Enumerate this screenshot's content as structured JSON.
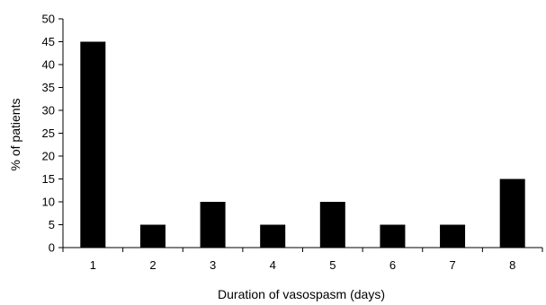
{
  "chart_data": {
    "type": "bar",
    "title": "",
    "xlabel": "Duration of vasospasm (days)",
    "ylabel": "% of patients",
    "categories": [
      "1",
      "2",
      "3",
      "4",
      "5",
      "6",
      "7",
      "8"
    ],
    "values": [
      45,
      5,
      10,
      5,
      10,
      5,
      5,
      15
    ],
    "ylim": [
      0,
      50
    ],
    "yticks": [
      0,
      5,
      10,
      15,
      20,
      25,
      30,
      35,
      40,
      45,
      50
    ],
    "grid": false,
    "legend": "none",
    "bar_color": "#000000"
  }
}
